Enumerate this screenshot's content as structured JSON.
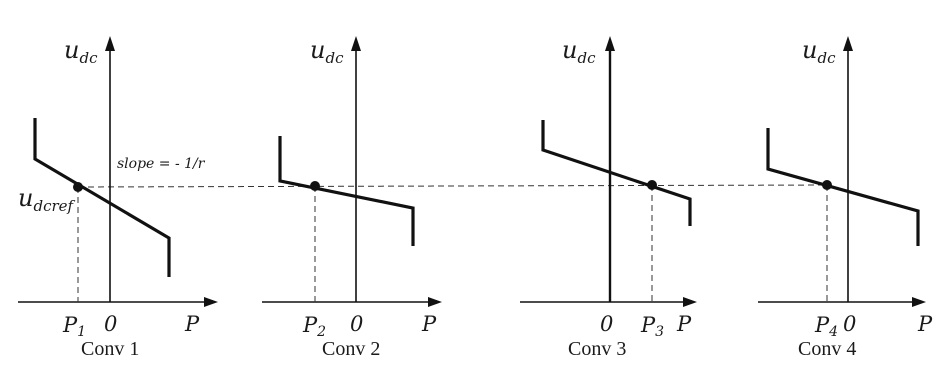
{
  "diagram": {
    "type": "droop-characteristics",
    "y_axis_symbol": "u",
    "y_axis_subscript": "dc",
    "x_axis_label": "P",
    "origin_label": "0",
    "reference_symbol": "u",
    "reference_subscript": "dcref",
    "slope_annotation": "slope = - 1/r",
    "panels": [
      {
        "caption": "Conv 1",
        "operating_point_symbol": "P",
        "operating_point_subscript": "1"
      },
      {
        "caption": "Conv 2",
        "operating_point_symbol": "P",
        "operating_point_subscript": "2"
      },
      {
        "caption": "Conv 3",
        "operating_point_symbol": "P",
        "operating_point_subscript": "3"
      },
      {
        "caption": "Conv 4",
        "operating_point_symbol": "P",
        "operating_point_subscript": "4"
      }
    ]
  }
}
